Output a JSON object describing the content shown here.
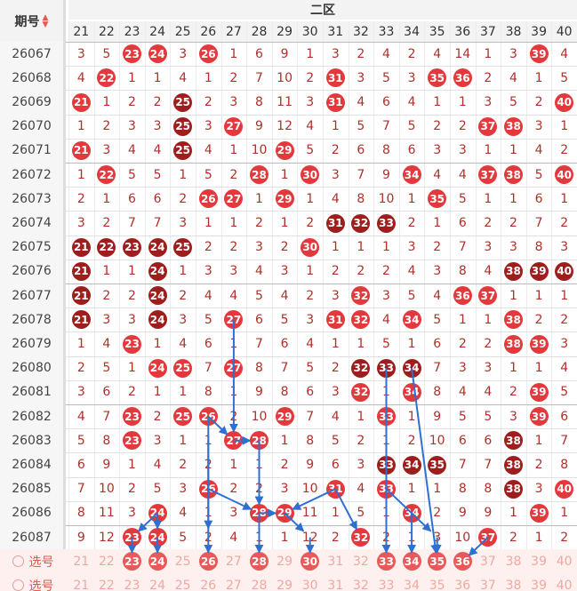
{
  "header": {
    "period_label": "期号",
    "zone_label": "二区",
    "sort_icon": "sort-arrows-icon",
    "columns": [
      21,
      22,
      23,
      24,
      25,
      26,
      27,
      28,
      29,
      30,
      31,
      32,
      33,
      34,
      35,
      36,
      37,
      38,
      39,
      40
    ]
  },
  "rows": [
    {
      "period": "26067",
      "vals": [
        3,
        5,
        23,
        24,
        3,
        26,
        1,
        6,
        9,
        1,
        3,
        2,
        4,
        2,
        4,
        14,
        1,
        3,
        39,
        4
      ]
    },
    {
      "period": "26068",
      "vals": [
        4,
        22,
        1,
        1,
        4,
        1,
        2,
        7,
        10,
        2,
        31,
        3,
        5,
        3,
        35,
        36,
        2,
        4,
        1,
        5
      ]
    },
    {
      "period": "26069",
      "vals": [
        21,
        1,
        2,
        2,
        25,
        2,
        3,
        8,
        11,
        3,
        31,
        4,
        6,
        4,
        1,
        1,
        3,
        5,
        2,
        40
      ]
    },
    {
      "period": "26070",
      "vals": [
        1,
        2,
        3,
        3,
        25,
        3,
        27,
        9,
        12,
        4,
        1,
        5,
        7,
        5,
        2,
        2,
        37,
        38,
        3,
        1
      ]
    },
    {
      "period": "26071",
      "vals": [
        21,
        3,
        4,
        4,
        25,
        4,
        1,
        10,
        29,
        5,
        2,
        6,
        8,
        6,
        3,
        3,
        1,
        1,
        4,
        2
      ]
    },
    {
      "period": "26072",
      "vals": [
        1,
        22,
        5,
        5,
        1,
        5,
        2,
        28,
        1,
        30,
        3,
        7,
        9,
        34,
        4,
        4,
        37,
        38,
        5,
        40
      ]
    },
    {
      "period": "26073",
      "vals": [
        2,
        1,
        6,
        6,
        2,
        26,
        27,
        1,
        29,
        1,
        4,
        8,
        10,
        1,
        35,
        5,
        1,
        1,
        6,
        1
      ]
    },
    {
      "period": "26074",
      "vals": [
        3,
        2,
        7,
        7,
        3,
        1,
        1,
        2,
        1,
        2,
        31,
        32,
        33,
        2,
        1,
        6,
        2,
        2,
        7,
        2
      ]
    },
    {
      "period": "26075",
      "vals": [
        21,
        22,
        23,
        24,
        25,
        2,
        2,
        3,
        2,
        30,
        1,
        1,
        1,
        3,
        2,
        7,
        3,
        3,
        8,
        3
      ]
    },
    {
      "period": "26076",
      "vals": [
        21,
        1,
        1,
        24,
        1,
        3,
        3,
        4,
        3,
        1,
        2,
        2,
        2,
        4,
        3,
        8,
        4,
        38,
        39,
        40
      ]
    },
    {
      "period": "26077",
      "vals": [
        21,
        2,
        2,
        24,
        2,
        4,
        4,
        5,
        4,
        2,
        3,
        32,
        3,
        5,
        4,
        36,
        37,
        1,
        1,
        1
      ]
    },
    {
      "period": "26078",
      "vals": [
        21,
        3,
        3,
        24,
        3,
        5,
        27,
        6,
        5,
        3,
        31,
        32,
        4,
        34,
        5,
        1,
        1,
        38,
        2,
        2
      ]
    },
    {
      "period": "26079",
      "vals": [
        1,
        4,
        23,
        1,
        4,
        6,
        1,
        7,
        6,
        4,
        1,
        1,
        5,
        1,
        6,
        2,
        2,
        38,
        39,
        3
      ]
    },
    {
      "period": "26080",
      "vals": [
        2,
        5,
        1,
        24,
        25,
        7,
        27,
        8,
        7,
        5,
        2,
        32,
        33,
        34,
        7,
        3,
        3,
        1,
        1,
        4
      ]
    },
    {
      "period": "26081",
      "vals": [
        3,
        6,
        2,
        1,
        1,
        8,
        1,
        9,
        8,
        6,
        3,
        32,
        1,
        34,
        8,
        4,
        4,
        2,
        39,
        5
      ]
    },
    {
      "period": "26082",
      "vals": [
        4,
        7,
        23,
        2,
        25,
        26,
        2,
        10,
        29,
        7,
        4,
        1,
        33,
        1,
        9,
        5,
        5,
        3,
        39,
        6
      ]
    },
    {
      "period": "26083",
      "vals": [
        5,
        8,
        23,
        3,
        1,
        1,
        27,
        28,
        1,
        8,
        5,
        2,
        1,
        2,
        10,
        6,
        6,
        38,
        1,
        7
      ]
    },
    {
      "period": "26084",
      "vals": [
        6,
        9,
        1,
        4,
        2,
        2,
        1,
        1,
        2,
        9,
        6,
        3,
        33,
        34,
        35,
        7,
        7,
        38,
        2,
        8
      ]
    },
    {
      "period": "26085",
      "vals": [
        7,
        10,
        2,
        5,
        3,
        26,
        2,
        2,
        3,
        10,
        31,
        4,
        33,
        1,
        1,
        8,
        8,
        38,
        3,
        40
      ]
    },
    {
      "period": "26086",
      "vals": [
        8,
        11,
        3,
        24,
        4,
        1,
        3,
        28,
        29,
        11,
        1,
        5,
        1,
        34,
        2,
        9,
        9,
        1,
        39,
        1
      ]
    },
    {
      "period": "26087",
      "vals": [
        9,
        12,
        23,
        24,
        5,
        2,
        4,
        1,
        1,
        12,
        2,
        32,
        2,
        1,
        3,
        10,
        37,
        2,
        1,
        2
      ]
    }
  ],
  "dark_cells": [
    "26070-25",
    "26071-25",
    "26069-25",
    "26074-31",
    "26074-32",
    "26074-33",
    "26075-21",
    "26075-22",
    "26075-23",
    "26075-24",
    "26075-25",
    "26076-21",
    "26076-24",
    "26076-38",
    "26076-39",
    "26076-40",
    "26077-21",
    "26077-24",
    "26078-21",
    "26078-24",
    "26080-32",
    "26080-33",
    "26080-34",
    "26083-38",
    "26084-33",
    "26084-34",
    "26084-35",
    "26084-38",
    "26085-38"
  ],
  "select_rows": [
    {
      "label": "选号",
      "balls": [
        23,
        24,
        26,
        28,
        30,
        33,
        34,
        35,
        36
      ]
    },
    {
      "label": "选号",
      "balls": []
    }
  ],
  "arrows": [
    {
      "from": [
        "26078",
        27
      ],
      "to": [
        "26083",
        27
      ]
    },
    {
      "from": [
        "26082",
        26
      ],
      "to": [
        "26083",
        27
      ]
    },
    {
      "from": [
        "26082",
        26
      ],
      "to": [
        "26087",
        26
      ]
    },
    {
      "from": [
        "26083",
        27
      ],
      "to": [
        "26083",
        28
      ]
    },
    {
      "from": [
        "26083",
        28
      ],
      "to": [
        "26086",
        28
      ]
    },
    {
      "from": [
        "26085",
        26
      ],
      "to": [
        "26086",
        28
      ]
    },
    {
      "from": [
        "26086",
        28
      ],
      "to": [
        "26086",
        29
      ]
    },
    {
      "from": [
        "26086",
        29
      ],
      "to": [
        "26087",
        30
      ]
    },
    {
      "from": [
        "26085",
        31
      ],
      "to": [
        "26086",
        29
      ]
    },
    {
      "from": [
        "26085",
        31
      ],
      "to": [
        "26087",
        32
      ]
    },
    {
      "from": [
        "26086",
        24
      ],
      "to": [
        "26087",
        23
      ]
    },
    {
      "from": [
        "26086",
        24
      ],
      "to": [
        "26087",
        24
      ]
    },
    {
      "from": [
        "26087",
        23
      ],
      "to": [
        "SEL",
        23
      ]
    },
    {
      "from": [
        "26087",
        24
      ],
      "to": [
        "SEL",
        24
      ]
    },
    {
      "from": [
        "26086",
        28
      ],
      "to": [
        "SEL",
        28
      ]
    },
    {
      "from": [
        "26087",
        30
      ],
      "to": [
        "SEL",
        30
      ]
    },
    {
      "from": [
        "26080",
        33
      ],
      "to": [
        "SEL",
        33
      ]
    },
    {
      "from": [
        "26085",
        33
      ],
      "to": [
        "26087",
        35
      ]
    },
    {
      "from": [
        "26086",
        34
      ],
      "to": [
        "SEL",
        34
      ]
    },
    {
      "from": [
        "26087",
        35
      ],
      "to": [
        "SEL",
        35
      ]
    },
    {
      "from": [
        "26087",
        37
      ],
      "to": [
        "SEL",
        36
      ]
    },
    {
      "from": [
        "26083",
        26
      ],
      "to": [
        "SEL",
        26
      ]
    },
    {
      "from": [
        "26080",
        34
      ],
      "to": [
        "SEL",
        35
      ]
    }
  ]
}
